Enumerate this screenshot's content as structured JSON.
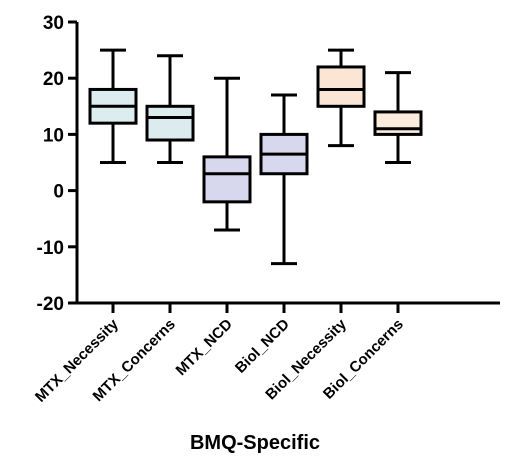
{
  "chart_data": {
    "type": "box",
    "title": "",
    "xlabel": "BMQ-Specific",
    "ylabel": "",
    "ylim": [
      -20,
      30
    ],
    "yticks": [
      -20,
      -10,
      0,
      10,
      20,
      30
    ],
    "grid": false,
    "legend": "none",
    "categories": [
      "MTX_Necessity",
      "MTX_Concerns",
      "MTX_NCD",
      "Biol_NCD",
      "Biol_Necessity",
      "Biol_Concerns"
    ],
    "boxes": [
      {
        "category": "MTX_Necessity",
        "min": 5,
        "q1": 12,
        "median": 15,
        "q3": 18,
        "max": 25,
        "color": "#dcedf0"
      },
      {
        "category": "MTX_Concerns",
        "min": 5,
        "q1": 9,
        "median": 13,
        "q3": 15,
        "max": 24,
        "color": "#dcebee"
      },
      {
        "category": "MTX_NCD",
        "min": -7,
        "q1": -2,
        "median": 3,
        "q3": 6,
        "max": 20,
        "color": "#d7d8ee"
      },
      {
        "category": "Biol_NCD",
        "min": -13,
        "q1": 3,
        "median": 6.5,
        "q3": 10,
        "max": 17,
        "color": "#d7d8ee"
      },
      {
        "category": "Biol_Necessity",
        "min": 8,
        "q1": 15,
        "median": 18,
        "q3": 22,
        "max": 25,
        "color": "#fbe6d6"
      },
      {
        "category": "Biol_Concerns",
        "min": 5,
        "q1": 10,
        "median": 11,
        "q3": 14,
        "max": 21,
        "color": "#fcecdd"
      }
    ]
  }
}
